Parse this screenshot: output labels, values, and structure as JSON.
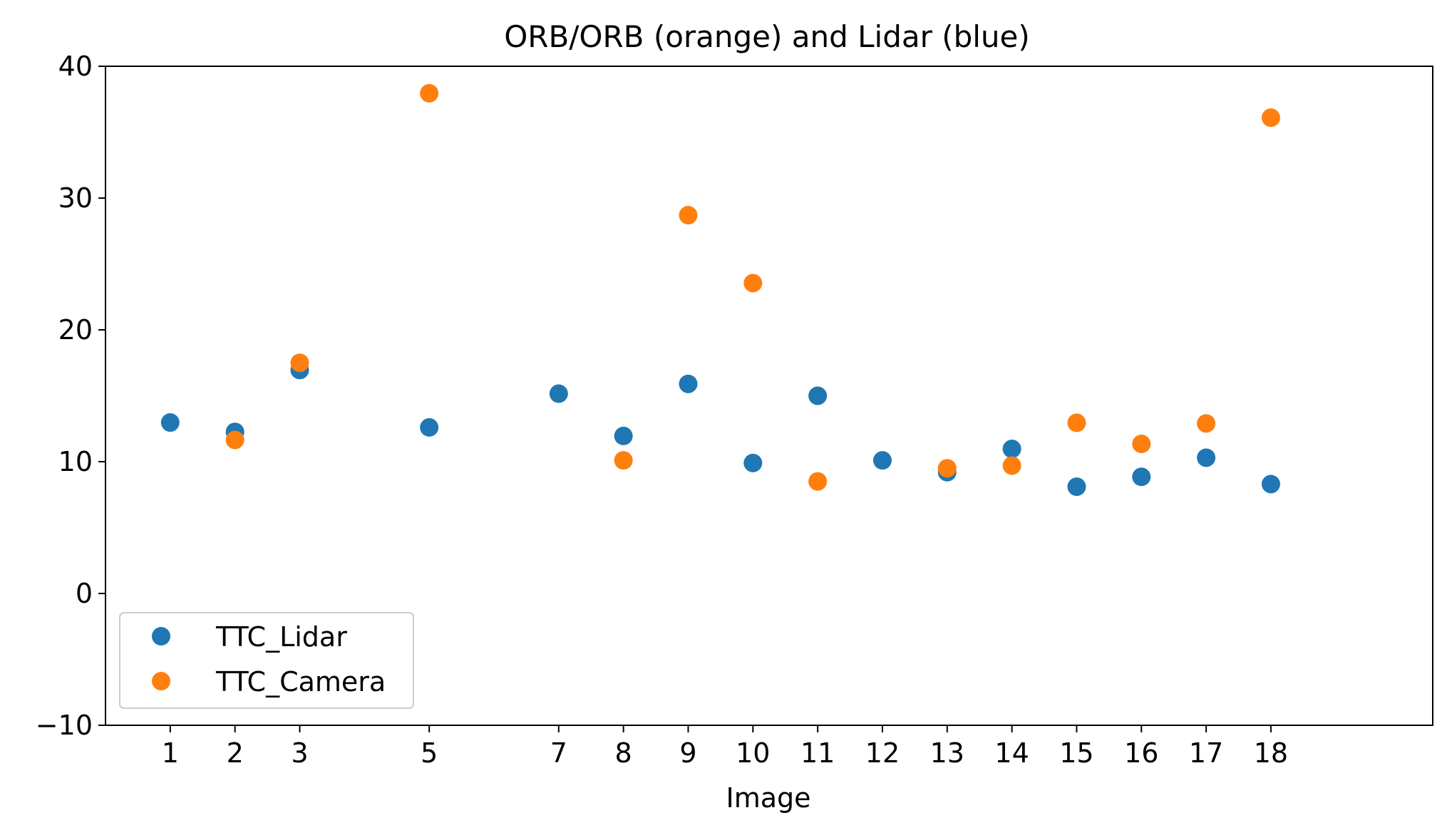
{
  "chart_data": {
    "type": "scatter",
    "title": "ORB/ORB (orange) and Lidar (blue)",
    "xlabel": "Image",
    "ylabel": "",
    "xlim": [
      0,
      20.5
    ],
    "ylim": [
      -10,
      40
    ],
    "xticks": [
      1,
      2,
      3,
      5,
      7,
      8,
      9,
      10,
      11,
      12,
      13,
      14,
      15,
      16,
      17,
      18
    ],
    "yticks": [
      -10,
      0,
      10,
      20,
      30,
      40
    ],
    "grid": false,
    "legend_position": "lower-left",
    "series": [
      {
        "name": "TTC_Lidar",
        "color": "#1f77b4",
        "x": [
          1,
          2,
          3,
          5,
          7,
          8,
          9,
          10,
          11,
          12,
          13,
          14,
          15,
          16,
          17,
          18
        ],
        "y": [
          12.97,
          12.26,
          16.95,
          12.6,
          15.16,
          11.95,
          15.9,
          9.9,
          15.0,
          10.1,
          9.2,
          10.97,
          8.1,
          8.85,
          10.3,
          8.3
        ]
      },
      {
        "name": "TTC_Camera",
        "color": "#ff7f0e",
        "x": [
          2,
          3,
          5,
          8,
          9,
          10,
          11,
          13,
          14,
          15,
          16,
          17,
          18
        ],
        "y": [
          11.65,
          17.5,
          37.95,
          10.1,
          28.7,
          23.55,
          8.5,
          9.5,
          9.7,
          12.95,
          11.35,
          12.9,
          36.1
        ]
      }
    ]
  }
}
